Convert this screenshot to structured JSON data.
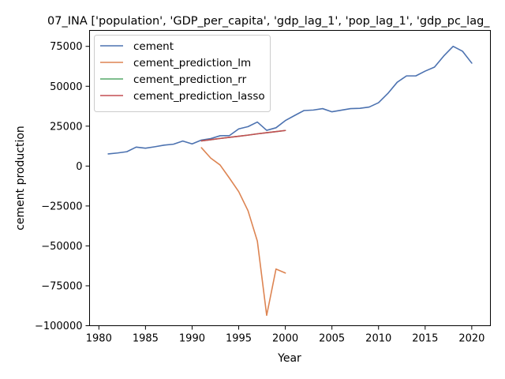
{
  "chart_data": {
    "type": "line",
    "title": "07_INA ['population', 'GDP_per_capita', 'gdp_lag_1', 'pop_lag_1', 'gdp_pc_lag_",
    "xlabel": "Year",
    "ylabel": "cement production",
    "xlim": [
      1979.0,
      2022.0
    ],
    "ylim": [
      -100000,
      85000
    ],
    "xticks": [
      1980,
      1985,
      1990,
      1995,
      2000,
      2005,
      2010,
      2015,
      2020
    ],
    "xtick_labels": [
      "1980",
      "1985",
      "1990",
      "1995",
      "2000",
      "2005",
      "2010",
      "2015",
      "2020"
    ],
    "yticks": [
      -100000,
      -75000,
      -50000,
      -25000,
      0,
      25000,
      50000,
      75000
    ],
    "ytick_labels": [
      "−100000",
      "−75000",
      "−50000",
      "−25000",
      "0",
      "25000",
      "50000",
      "75000"
    ],
    "grid": false,
    "legend_position": "top-left",
    "series": [
      {
        "name": "cement",
        "color": "#4c72b0",
        "x": [
          1981,
          1982,
          1983,
          1984,
          1985,
          1986,
          1987,
          1988,
          1989,
          1990,
          1991,
          1992,
          1993,
          1994,
          1995,
          1996,
          1997,
          1998,
          1999,
          2000,
          2001,
          2002,
          2003,
          2004,
          2005,
          2006,
          2007,
          2008,
          2009,
          2010,
          2011,
          2012,
          2013,
          2014,
          2015,
          2016,
          2017,
          2018,
          2019,
          2020
        ],
        "y": [
          7600,
          8200,
          9000,
          11900,
          11200,
          12100,
          13100,
          13700,
          15700,
          13900,
          16300,
          17200,
          19000,
          19100,
          23300,
          24700,
          27600,
          22400,
          24000,
          28500,
          31700,
          34800,
          35100,
          36000,
          34000,
          35000,
          36000,
          36200,
          37000,
          39700,
          45500,
          52500,
          56500,
          56500,
          59500,
          62000,
          69000,
          75000,
          72000,
          64500
        ]
      },
      {
        "name": "cement_prediction_lm",
        "color": "#dd8452",
        "x": [
          1991,
          1992,
          1993,
          1994,
          1995,
          1996,
          1997,
          1998,
          1999,
          2000
        ],
        "y": [
          11500,
          5000,
          700,
          -7500,
          -16000,
          -28000,
          -47000,
          -93500,
          -64500,
          -67000
        ]
      },
      {
        "name": "cement_prediction_rr",
        "color": "#55a868",
        "x": [
          1991,
          1992,
          1993,
          1994,
          1995,
          1996,
          1997,
          1998,
          1999,
          2000
        ],
        "y": [
          15800,
          16500,
          17300,
          18000,
          18700,
          19400,
          20200,
          20900,
          21600,
          22300
        ]
      },
      {
        "name": "cement_prediction_lasso",
        "color": "#c44e52",
        "x": [
          1991,
          1992,
          1993,
          1994,
          1995,
          1996,
          1997,
          1998,
          1999,
          2000
        ],
        "y": [
          15800,
          16500,
          17300,
          18000,
          18700,
          19400,
          20200,
          20900,
          21600,
          22300
        ]
      }
    ]
  }
}
